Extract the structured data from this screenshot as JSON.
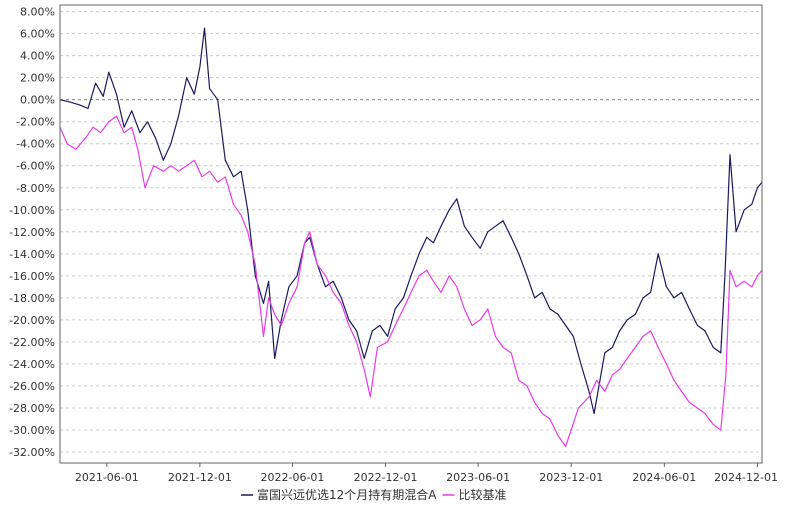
{
  "chart_data": {
    "type": "line",
    "title": "",
    "xlabel": "",
    "ylabel": "",
    "x_ticks": [
      "2021-06-01",
      "2021-12-01",
      "2022-06-01",
      "2022-12-01",
      "2023-06-01",
      "2023-12-01",
      "2024-06-01",
      "2024-12-01"
    ],
    "y_ticks": [
      "8.00%",
      "6.00%",
      "4.00%",
      "2.00%",
      "0.00%",
      "-2.00%",
      "-4.00%",
      "-6.00%",
      "-8.00%",
      "-10.00%",
      "-12.00%",
      "-14.00%",
      "-16.00%",
      "-18.00%",
      "-20.00%",
      "-22.00%",
      "-24.00%",
      "-26.00%",
      "-28.00%",
      "-30.00%",
      "-32.00%"
    ],
    "ylim": [
      -33.0,
      8.6
    ],
    "xlim": [
      "2021-03-01",
      "2024-12-10"
    ],
    "grid": true,
    "legend_position": "bottom",
    "series": [
      {
        "name": "富国兴远优选12个月持有期混合A",
        "color": "#1a1a5e",
        "points": [
          [
            "2021-03-01",
            0.0
          ],
          [
            "2021-03-20",
            -0.2
          ],
          [
            "2021-04-10",
            -0.5
          ],
          [
            "2021-04-25",
            -0.8
          ],
          [
            "2021-05-10",
            1.5
          ],
          [
            "2021-05-25",
            0.3
          ],
          [
            "2021-06-05",
            2.5
          ],
          [
            "2021-06-20",
            0.5
          ],
          [
            "2021-07-05",
            -2.5
          ],
          [
            "2021-07-20",
            -1.0
          ],
          [
            "2021-08-05",
            -3.0
          ],
          [
            "2021-08-20",
            -2.0
          ],
          [
            "2021-09-05",
            -3.5
          ],
          [
            "2021-09-20",
            -5.5
          ],
          [
            "2021-10-05",
            -4.0
          ],
          [
            "2021-10-20",
            -1.5
          ],
          [
            "2021-11-05",
            2.0
          ],
          [
            "2021-11-20",
            0.5
          ],
          [
            "2021-12-01",
            3.0
          ],
          [
            "2021-12-10",
            6.5
          ],
          [
            "2021-12-20",
            1.0
          ],
          [
            "2022-01-05",
            0.0
          ],
          [
            "2022-01-20",
            -5.5
          ],
          [
            "2022-02-05",
            -7.0
          ],
          [
            "2022-02-20",
            -6.5
          ],
          [
            "2022-03-05",
            -10.0
          ],
          [
            "2022-03-20",
            -16.0
          ],
          [
            "2022-04-05",
            -18.5
          ],
          [
            "2022-04-15",
            -16.5
          ],
          [
            "2022-04-27",
            -23.5
          ],
          [
            "2022-05-10",
            -20.0
          ],
          [
            "2022-05-25",
            -17.0
          ],
          [
            "2022-06-10",
            -16.0
          ],
          [
            "2022-06-25",
            -13.0
          ],
          [
            "2022-07-05",
            -12.5
          ],
          [
            "2022-07-20",
            -15.0
          ],
          [
            "2022-08-05",
            -17.0
          ],
          [
            "2022-08-20",
            -16.5
          ],
          [
            "2022-09-05",
            -18.0
          ],
          [
            "2022-09-20",
            -20.0
          ],
          [
            "2022-10-05",
            -21.0
          ],
          [
            "2022-10-20",
            -23.5
          ],
          [
            "2022-11-05",
            -21.0
          ],
          [
            "2022-11-20",
            -20.5
          ],
          [
            "2022-12-05",
            -21.5
          ],
          [
            "2022-12-20",
            -19.0
          ],
          [
            "2023-01-05",
            -18.0
          ],
          [
            "2023-01-20",
            -16.0
          ],
          [
            "2023-02-05",
            -14.0
          ],
          [
            "2023-02-20",
            -12.5
          ],
          [
            "2023-03-05",
            -13.0
          ],
          [
            "2023-03-20",
            -11.5
          ],
          [
            "2023-04-05",
            -10.0
          ],
          [
            "2023-04-20",
            -9.0
          ],
          [
            "2023-05-05",
            -11.5
          ],
          [
            "2023-05-20",
            -12.5
          ],
          [
            "2023-06-05",
            -13.5
          ],
          [
            "2023-06-20",
            -12.0
          ],
          [
            "2023-07-05",
            -11.5
          ],
          [
            "2023-07-20",
            -11.0
          ],
          [
            "2023-08-05",
            -12.5
          ],
          [
            "2023-08-20",
            -14.0
          ],
          [
            "2023-09-05",
            -16.0
          ],
          [
            "2023-09-20",
            -18.0
          ],
          [
            "2023-10-05",
            -17.5
          ],
          [
            "2023-10-20",
            -19.0
          ],
          [
            "2023-11-05",
            -19.5
          ],
          [
            "2023-11-20",
            -20.5
          ],
          [
            "2023-12-05",
            -21.5
          ],
          [
            "2023-12-20",
            -24.0
          ],
          [
            "2024-01-05",
            -26.5
          ],
          [
            "2024-01-15",
            -28.5
          ],
          [
            "2024-02-05",
            -23.0
          ],
          [
            "2024-02-20",
            -22.5
          ],
          [
            "2024-03-05",
            -21.0
          ],
          [
            "2024-03-20",
            -20.0
          ],
          [
            "2024-04-05",
            -19.5
          ],
          [
            "2024-04-20",
            -18.0
          ],
          [
            "2024-05-05",
            -17.5
          ],
          [
            "2024-05-20",
            -14.0
          ],
          [
            "2024-06-05",
            -17.0
          ],
          [
            "2024-06-20",
            -18.0
          ],
          [
            "2024-07-05",
            -17.5
          ],
          [
            "2024-07-20",
            -19.0
          ],
          [
            "2024-08-05",
            -20.5
          ],
          [
            "2024-08-20",
            -21.0
          ],
          [
            "2024-09-05",
            -22.5
          ],
          [
            "2024-09-20",
            -23.0
          ],
          [
            "2024-09-28",
            -16.0
          ],
          [
            "2024-10-08",
            -5.0
          ],
          [
            "2024-10-20",
            -12.0
          ],
          [
            "2024-11-05",
            -10.0
          ],
          [
            "2024-11-20",
            -9.5
          ],
          [
            "2024-12-01",
            -8.0
          ],
          [
            "2024-12-10",
            -7.5
          ]
        ]
      },
      {
        "name": "比较基准",
        "color": "#e83ae8",
        "points": [
          [
            "2021-03-01",
            -2.5
          ],
          [
            "2021-03-15",
            -4.0
          ],
          [
            "2021-04-01",
            -4.5
          ],
          [
            "2021-04-20",
            -3.5
          ],
          [
            "2021-05-05",
            -2.5
          ],
          [
            "2021-05-20",
            -3.0
          ],
          [
            "2021-06-05",
            -2.0
          ],
          [
            "2021-06-20",
            -1.5
          ],
          [
            "2021-07-05",
            -3.0
          ],
          [
            "2021-07-20",
            -2.5
          ],
          [
            "2021-08-01",
            -4.5
          ],
          [
            "2021-08-15",
            -8.0
          ],
          [
            "2021-09-01",
            -6.0
          ],
          [
            "2021-09-20",
            -6.5
          ],
          [
            "2021-10-05",
            -6.0
          ],
          [
            "2021-10-20",
            -6.5
          ],
          [
            "2021-11-05",
            -6.0
          ],
          [
            "2021-11-20",
            -5.5
          ],
          [
            "2021-12-05",
            -7.0
          ],
          [
            "2021-12-20",
            -6.5
          ],
          [
            "2022-01-05",
            -7.5
          ],
          [
            "2022-01-20",
            -7.0
          ],
          [
            "2022-02-05",
            -9.5
          ],
          [
            "2022-02-20",
            -10.5
          ],
          [
            "2022-03-05",
            -12.0
          ],
          [
            "2022-03-20",
            -15.0
          ],
          [
            "2022-04-05",
            -21.5
          ],
          [
            "2022-04-15",
            -18.0
          ],
          [
            "2022-04-27",
            -19.5
          ],
          [
            "2022-05-10",
            -20.5
          ],
          [
            "2022-05-25",
            -18.5
          ],
          [
            "2022-06-10",
            -17.0
          ],
          [
            "2022-06-25",
            -13.0
          ],
          [
            "2022-07-05",
            -12.0
          ],
          [
            "2022-07-20",
            -15.0
          ],
          [
            "2022-08-05",
            -16.0
          ],
          [
            "2022-08-20",
            -17.5
          ],
          [
            "2022-09-05",
            -18.5
          ],
          [
            "2022-09-20",
            -20.5
          ],
          [
            "2022-10-05",
            -22.0
          ],
          [
            "2022-10-20",
            -24.5
          ],
          [
            "2022-11-01",
            -27.0
          ],
          [
            "2022-11-15",
            -22.5
          ],
          [
            "2022-12-05",
            -22.0
          ],
          [
            "2022-12-20",
            -20.5
          ],
          [
            "2023-01-05",
            -19.0
          ],
          [
            "2023-01-20",
            -17.5
          ],
          [
            "2023-02-05",
            -16.0
          ],
          [
            "2023-02-20",
            -15.5
          ],
          [
            "2023-03-05",
            -16.5
          ],
          [
            "2023-03-20",
            -17.5
          ],
          [
            "2023-04-05",
            -16.0
          ],
          [
            "2023-04-20",
            -17.0
          ],
          [
            "2023-05-05",
            -19.0
          ],
          [
            "2023-05-20",
            -20.5
          ],
          [
            "2023-06-05",
            -20.0
          ],
          [
            "2023-06-20",
            -19.0
          ],
          [
            "2023-07-05",
            -21.5
          ],
          [
            "2023-07-20",
            -22.5
          ],
          [
            "2023-08-05",
            -23.0
          ],
          [
            "2023-08-20",
            -25.5
          ],
          [
            "2023-09-05",
            -26.0
          ],
          [
            "2023-09-20",
            -27.5
          ],
          [
            "2023-10-05",
            -28.5
          ],
          [
            "2023-10-20",
            -29.0
          ],
          [
            "2023-11-05",
            -30.5
          ],
          [
            "2023-11-20",
            -31.5
          ],
          [
            "2023-12-01",
            -30.0
          ],
          [
            "2023-12-15",
            -28.0
          ],
          [
            "2024-01-05",
            -27.0
          ],
          [
            "2024-01-20",
            -25.5
          ],
          [
            "2024-02-05",
            -26.5
          ],
          [
            "2024-02-20",
            -25.0
          ],
          [
            "2024-03-05",
            -24.5
          ],
          [
            "2024-03-20",
            -23.5
          ],
          [
            "2024-04-05",
            -22.5
          ],
          [
            "2024-04-20",
            -21.5
          ],
          [
            "2024-05-05",
            -21.0
          ],
          [
            "2024-05-20",
            -22.5
          ],
          [
            "2024-06-05",
            -24.0
          ],
          [
            "2024-06-20",
            -25.5
          ],
          [
            "2024-07-05",
            -26.5
          ],
          [
            "2024-07-20",
            -27.5
          ],
          [
            "2024-08-05",
            -28.0
          ],
          [
            "2024-08-20",
            -28.5
          ],
          [
            "2024-09-05",
            -29.5
          ],
          [
            "2024-09-20",
            -30.0
          ],
          [
            "2024-09-30",
            -25.0
          ],
          [
            "2024-10-08",
            -15.5
          ],
          [
            "2024-10-20",
            -17.0
          ],
          [
            "2024-11-05",
            -16.5
          ],
          [
            "2024-11-20",
            -17.0
          ],
          [
            "2024-12-01",
            -16.0
          ],
          [
            "2024-12-10",
            -15.5
          ]
        ]
      }
    ]
  }
}
